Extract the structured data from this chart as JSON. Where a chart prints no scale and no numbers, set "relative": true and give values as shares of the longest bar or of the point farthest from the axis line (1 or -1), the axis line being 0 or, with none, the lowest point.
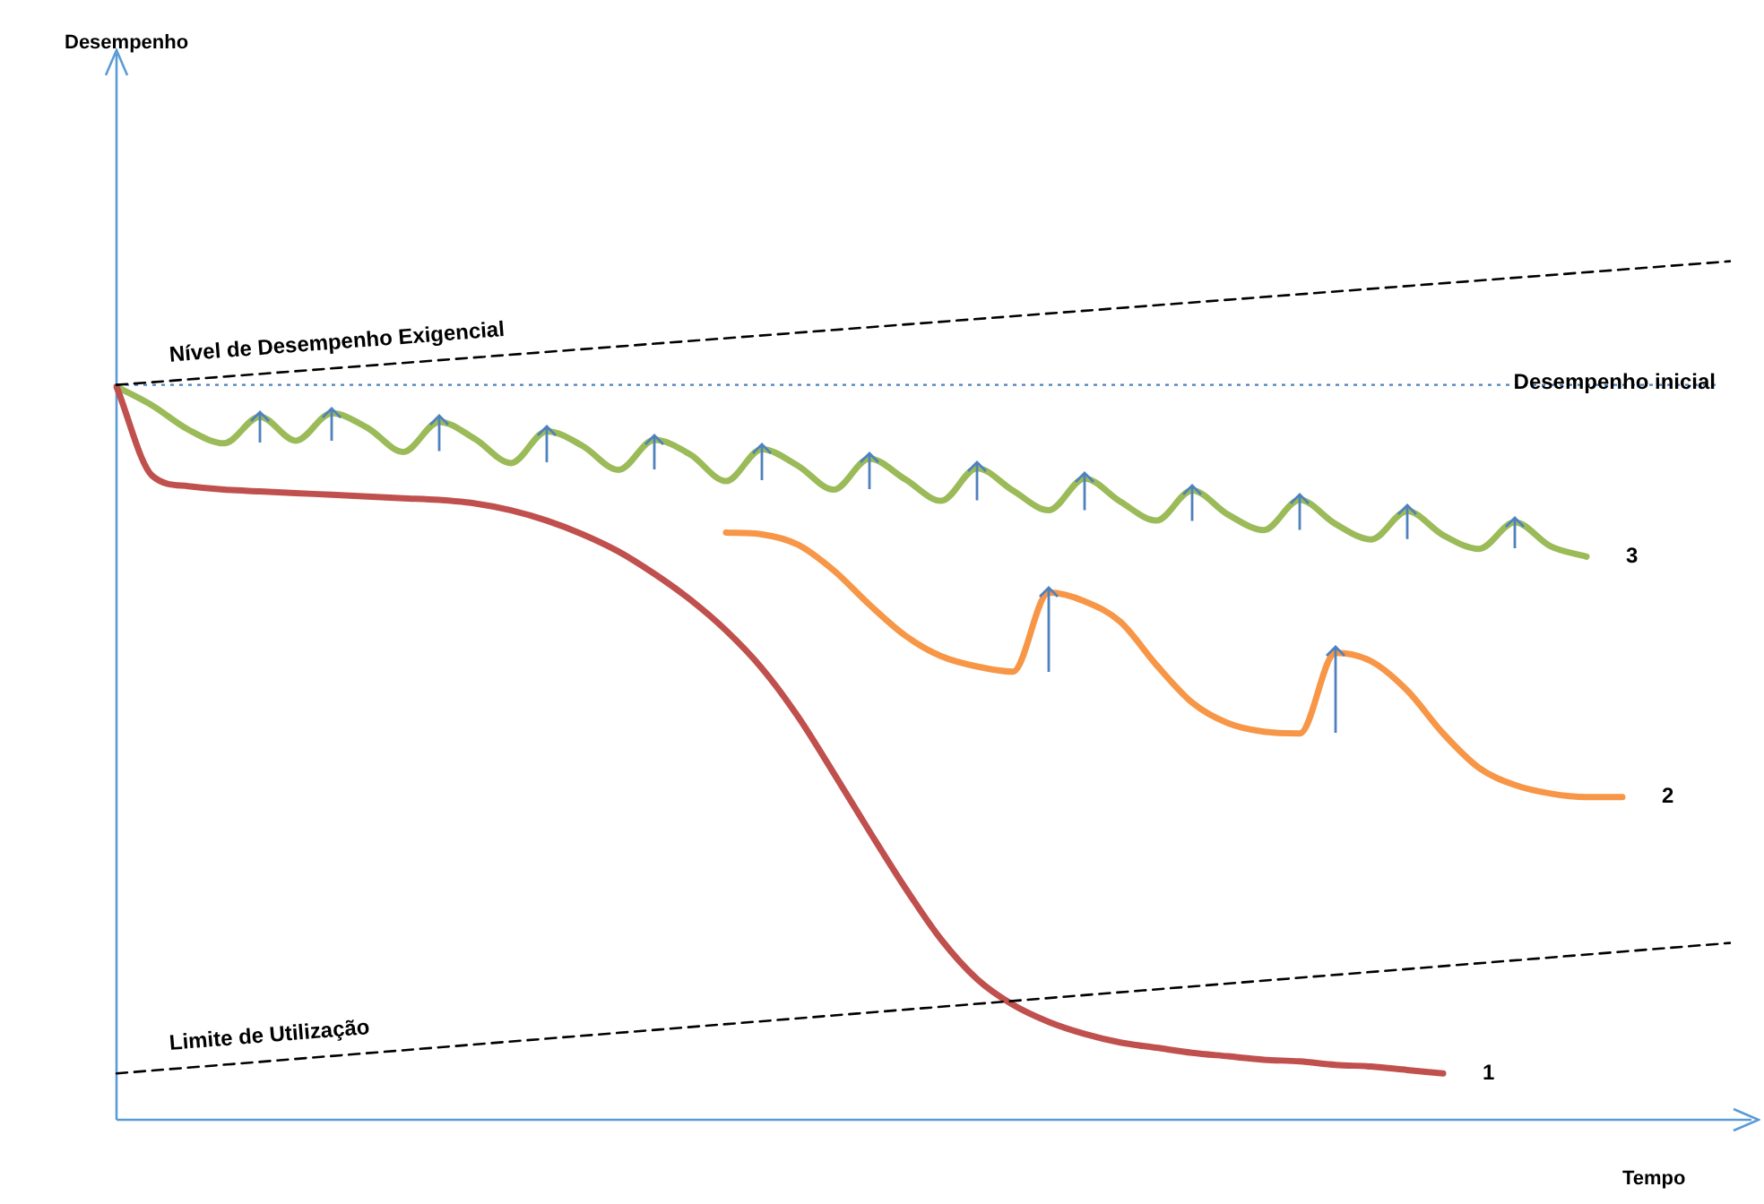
{
  "chart_data": {
    "type": "line",
    "relative": true,
    "xlabel": "Tempo",
    "annotations": [
      "Desempenho"
    ],
    "legend": false,
    "marker": "none",
    "categories": [
      null,
      null,
      null,
      null,
      null,
      null,
      null,
      null,
      null,
      null,
      null,
      null,
      null,
      null,
      null,
      null,
      null,
      null,
      null,
      null,
      null,
      null,
      null,
      null,
      null,
      null,
      null,
      null,
      null,
      null,
      null,
      null,
      null,
      null,
      null,
      null,
      null,
      null,
      null,
      null,
      null,
      null,
      null,
      null,
      null,
      null
    ],
    "ref_lines": [
      {
        "axis": "y",
        "value": 0.856,
        "label": "Desempenho inicial",
        "color": "#4f81bd",
        "line_style": "dotted"
      }
    ],
    "series": [
      {
        "name": "Nível de Desempenho Exigencial",
        "color": "#000000",
        "line_style": "dashed",
        "values": [
          0.856,
          null,
          null,
          null,
          null,
          null,
          null,
          null,
          null,
          null,
          null,
          null,
          null,
          null,
          null,
          null,
          null,
          null,
          null,
          null,
          null,
          null,
          null,
          null,
          null,
          null,
          null,
          null,
          null,
          null,
          null,
          null,
          null,
          null,
          null,
          null,
          null,
          null,
          null,
          null,
          null,
          null,
          null,
          null,
          null,
          1.0
        ]
      },
      {
        "name": "Limite de Utilização",
        "color": "#000000",
        "line_style": "dashed",
        "values": [
          0.054,
          null,
          null,
          null,
          null,
          null,
          null,
          null,
          null,
          null,
          null,
          null,
          null,
          null,
          null,
          null,
          null,
          null,
          null,
          null,
          null,
          null,
          null,
          null,
          null,
          null,
          null,
          null,
          null,
          null,
          null,
          null,
          null,
          null,
          null,
          null,
          null,
          null,
          null,
          null,
          null,
          null,
          null,
          null,
          null,
          0.206
        ]
      },
      {
        "name": "1",
        "color": "#c0504d",
        "line_style": "solid",
        "values": [
          0.854,
          0.75,
          0.738,
          0.734,
          0.732,
          0.73,
          0.728,
          0.726,
          0.724,
          0.722,
          0.718,
          0.71,
          0.698,
          0.682,
          0.662,
          0.636,
          0.606,
          0.57,
          0.526,
          0.47,
          0.404,
          0.336,
          0.27,
          0.21,
          0.164,
          0.134,
          0.114,
          0.1,
          0.09,
          0.084,
          0.078,
          0.074,
          0.07,
          0.068,
          0.064,
          0.062,
          0.058,
          0.054,
          null,
          null,
          null,
          null,
          null,
          null,
          null,
          null
        ]
      },
      {
        "name": "2",
        "color": "#f79646",
        "line_style": "solid",
        "values": [
          null,
          null,
          null,
          null,
          null,
          null,
          null,
          null,
          null,
          null,
          null,
          null,
          null,
          null,
          null,
          null,
          null,
          0.684,
          0.682,
          0.67,
          0.64,
          0.6,
          0.564,
          0.54,
          0.528,
          0.522,
          0.614,
          0.604,
          0.58,
          0.53,
          0.486,
          0.462,
          0.452,
          0.45,
          0.544,
          0.534,
          0.5,
          0.45,
          0.41,
          0.39,
          0.38,
          0.376,
          0.376,
          null,
          null,
          null
        ]
      },
      {
        "name": "3",
        "color": "#9bbb59",
        "line_style": "solid",
        "values": [
          0.854,
          0.832,
          0.804,
          0.788,
          0.819,
          0.791,
          0.823,
          0.806,
          0.778,
          0.813,
          0.793,
          0.765,
          0.802,
          0.785,
          0.757,
          0.792,
          0.775,
          0.744,
          0.781,
          0.762,
          0.734,
          0.77,
          0.746,
          0.721,
          0.759,
          0.733,
          0.71,
          0.747,
          0.72,
          0.698,
          0.733,
          0.705,
          0.687,
          0.722,
          0.694,
          0.676,
          0.709,
          0.681,
          0.665,
          0.696,
          0.668,
          0.656,
          null,
          null,
          null,
          null
        ]
      }
    ]
  }
}
